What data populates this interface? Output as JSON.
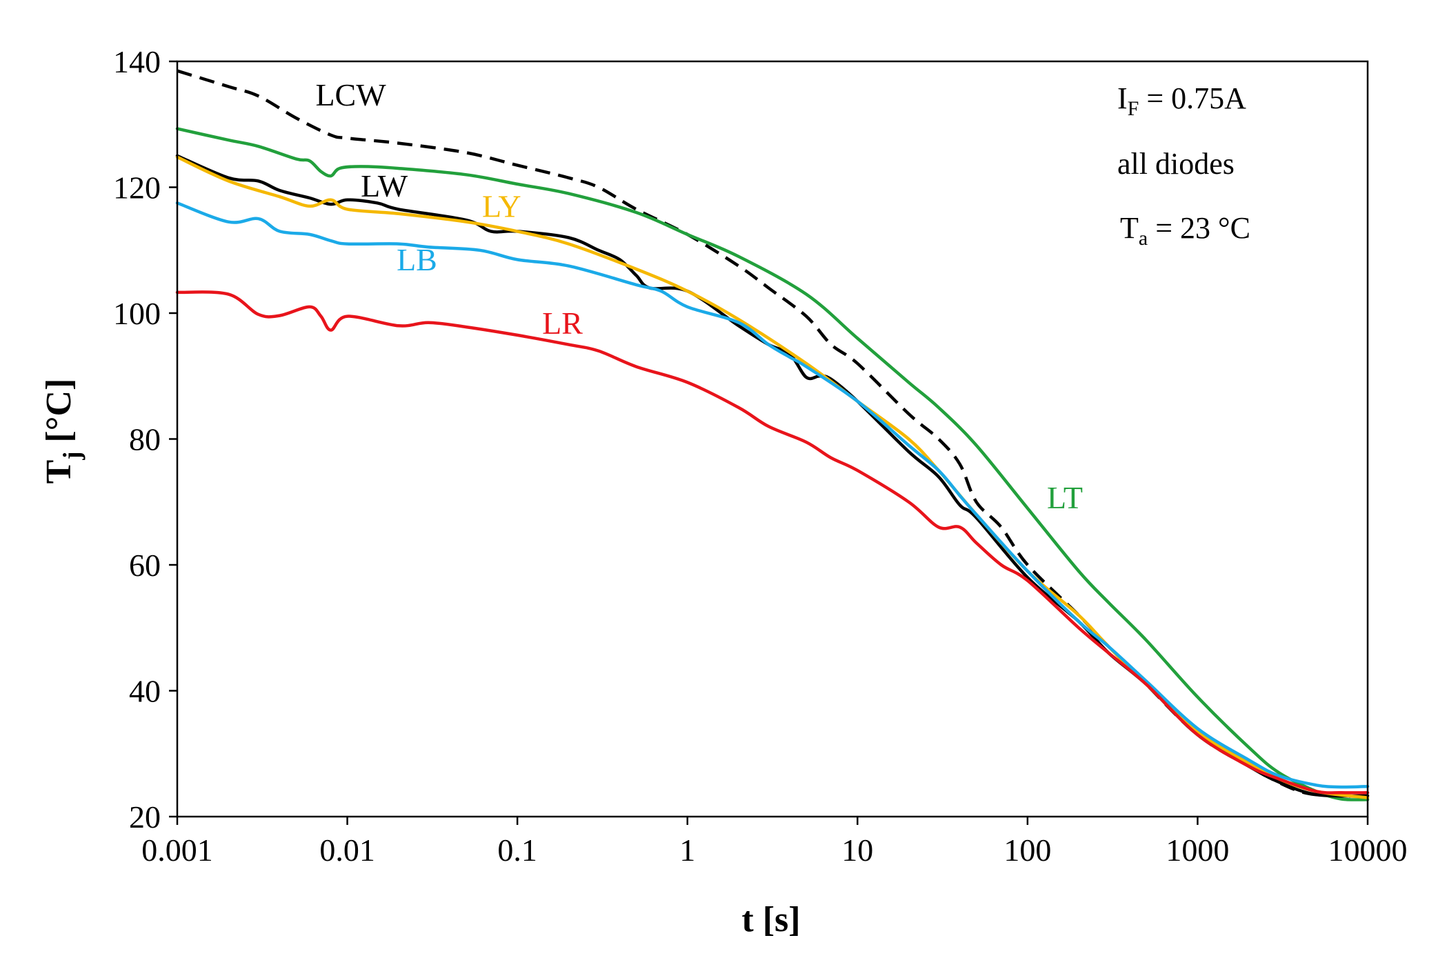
{
  "chart_data": {
    "type": "line",
    "xscale": "log",
    "xlabel": "t [s]",
    "ylabel_main": "T",
    "ylabel_sub": "j",
    "ylabel_rest": " [°C]",
    "xlim": [
      0.001,
      10000
    ],
    "ylim": [
      20,
      140
    ],
    "x_ticks": [
      0.001,
      0.01,
      0.1,
      1,
      10,
      100,
      1000,
      10000
    ],
    "x_tick_labels": [
      "0.001",
      "0.01",
      "0.1",
      "1",
      "10",
      "100",
      "1000",
      "10000"
    ],
    "y_ticks": [
      20,
      40,
      60,
      80,
      100,
      120,
      140
    ],
    "y_tick_labels": [
      "20",
      "40",
      "60",
      "80",
      "100",
      "120",
      "140"
    ],
    "annotations": {
      "current_main": "I",
      "current_sub": "F",
      "current_rest": " = 0.75A",
      "diodes": "all diodes",
      "ambient_main": "T",
      "ambient_sub": "a",
      "ambient_rest": " = 23 °C"
    },
    "series": [
      {
        "name": "LCW",
        "color": "#000000",
        "dashed": true,
        "label_at": [
          0.0065,
          133
        ],
        "label_anchor": "start",
        "points": [
          [
            0.001,
            138.5
          ],
          [
            0.002,
            136
          ],
          [
            0.003,
            134.5
          ],
          [
            0.005,
            131
          ],
          [
            0.008,
            128.3
          ],
          [
            0.01,
            127.8
          ],
          [
            0.02,
            127
          ],
          [
            0.05,
            125.5
          ],
          [
            0.1,
            123.5
          ],
          [
            0.2,
            121.5
          ],
          [
            0.3,
            120
          ],
          [
            0.5,
            116.5
          ],
          [
            1,
            112.5
          ],
          [
            2,
            107.5
          ],
          [
            3,
            104
          ],
          [
            5,
            99.5
          ],
          [
            7,
            95
          ],
          [
            10,
            92
          ],
          [
            20,
            84
          ],
          [
            30,
            80
          ],
          [
            40,
            76
          ],
          [
            50,
            70
          ],
          [
            70,
            66
          ],
          [
            100,
            60
          ],
          [
            200,
            52
          ],
          [
            300,
            47
          ],
          [
            500,
            41
          ],
          [
            1000,
            33
          ],
          [
            2000,
            28
          ],
          [
            4000,
            24
          ],
          [
            7000,
            23.3
          ],
          [
            10000,
            23.3
          ]
        ]
      },
      {
        "name": "LT",
        "color": "#22A03C",
        "dashed": false,
        "label_at": [
          130,
          69
        ],
        "label_anchor": "start",
        "points": [
          [
            0.001,
            129.3
          ],
          [
            0.002,
            127.5
          ],
          [
            0.003,
            126.5
          ],
          [
            0.005,
            124.5
          ],
          [
            0.006,
            124.2
          ],
          [
            0.007,
            122.5
          ],
          [
            0.008,
            121.8
          ],
          [
            0.009,
            123
          ],
          [
            0.012,
            123.3
          ],
          [
            0.02,
            123
          ],
          [
            0.05,
            122
          ],
          [
            0.1,
            120.5
          ],
          [
            0.2,
            119
          ],
          [
            0.5,
            116
          ],
          [
            1,
            112.5
          ],
          [
            2,
            109
          ],
          [
            5,
            103
          ],
          [
            10,
            96
          ],
          [
            20,
            89
          ],
          [
            30,
            85
          ],
          [
            50,
            79
          ],
          [
            100,
            69
          ],
          [
            200,
            59
          ],
          [
            300,
            54
          ],
          [
            500,
            48
          ],
          [
            1000,
            39
          ],
          [
            2000,
            31
          ],
          [
            3000,
            27
          ],
          [
            5000,
            24
          ],
          [
            7000,
            22.8
          ],
          [
            10000,
            22.7
          ]
        ]
      },
      {
        "name": "LW",
        "color": "#000000",
        "dashed": false,
        "label_at": [
          0.012,
          118.5
        ],
        "label_anchor": "start",
        "points": [
          [
            0.001,
            125
          ],
          [
            0.002,
            121.5
          ],
          [
            0.003,
            121
          ],
          [
            0.004,
            119.5
          ],
          [
            0.006,
            118.3
          ],
          [
            0.008,
            117.3
          ],
          [
            0.01,
            118
          ],
          [
            0.015,
            117.5
          ],
          [
            0.02,
            116.5
          ],
          [
            0.05,
            114.8
          ],
          [
            0.07,
            113
          ],
          [
            0.1,
            113
          ],
          [
            0.2,
            112
          ],
          [
            0.3,
            110
          ],
          [
            0.4,
            108.5
          ],
          [
            0.5,
            106
          ],
          [
            0.6,
            104
          ],
          [
            1,
            103.5
          ],
          [
            2,
            98
          ],
          [
            3,
            95
          ],
          [
            4,
            93.5
          ],
          [
            5,
            89.8
          ],
          [
            6,
            90
          ],
          [
            7,
            89.5
          ],
          [
            10,
            86
          ],
          [
            20,
            78
          ],
          [
            30,
            74
          ],
          [
            40,
            69.5
          ],
          [
            50,
            67.5
          ],
          [
            100,
            58
          ],
          [
            200,
            51
          ],
          [
            300,
            46
          ],
          [
            500,
            41
          ],
          [
            1000,
            33
          ],
          [
            2000,
            28
          ],
          [
            3000,
            25.5
          ],
          [
            5000,
            23.5
          ],
          [
            10000,
            23.3
          ]
        ]
      },
      {
        "name": "LY",
        "color": "#F5B800",
        "dashed": false,
        "label_at": [
          0.062,
          115.3
        ],
        "label_anchor": "start",
        "points": [
          [
            0.001,
            124.8
          ],
          [
            0.002,
            121
          ],
          [
            0.004,
            118.5
          ],
          [
            0.006,
            117
          ],
          [
            0.008,
            118
          ],
          [
            0.01,
            116.5
          ],
          [
            0.02,
            115.8
          ],
          [
            0.05,
            114.5
          ],
          [
            0.1,
            113
          ],
          [
            0.2,
            111
          ],
          [
            0.5,
            107
          ],
          [
            1,
            103.5
          ],
          [
            2,
            99
          ],
          [
            5,
            92
          ],
          [
            10,
            86
          ],
          [
            20,
            80
          ],
          [
            30,
            75
          ],
          [
            50,
            68
          ],
          [
            100,
            59
          ],
          [
            200,
            52
          ],
          [
            300,
            47
          ],
          [
            500,
            41
          ],
          [
            1000,
            33.5
          ],
          [
            2000,
            28.5
          ],
          [
            3000,
            26
          ],
          [
            5000,
            24
          ],
          [
            10000,
            23
          ]
        ]
      },
      {
        "name": "LB",
        "color": "#1BAAE8",
        "dashed": false,
        "label_at": [
          0.0195,
          106.8
        ],
        "label_anchor": "start",
        "points": [
          [
            0.001,
            117.5
          ],
          [
            0.002,
            114.5
          ],
          [
            0.003,
            115
          ],
          [
            0.004,
            113
          ],
          [
            0.006,
            112.5
          ],
          [
            0.008,
            111.5
          ],
          [
            0.01,
            111
          ],
          [
            0.02,
            111
          ],
          [
            0.03,
            110.5
          ],
          [
            0.06,
            110
          ],
          [
            0.1,
            108.5
          ],
          [
            0.2,
            107.5
          ],
          [
            0.5,
            104.5
          ],
          [
            0.7,
            103.5
          ],
          [
            1,
            101
          ],
          [
            2,
            98.5
          ],
          [
            3,
            95
          ],
          [
            4,
            93
          ],
          [
            5,
            91.5
          ],
          [
            10,
            86
          ],
          [
            20,
            79
          ],
          [
            30,
            75
          ],
          [
            40,
            71
          ],
          [
            50,
            68
          ],
          [
            100,
            59
          ],
          [
            200,
            51
          ],
          [
            300,
            47
          ],
          [
            500,
            41.5
          ],
          [
            1000,
            34
          ],
          [
            2000,
            29
          ],
          [
            3000,
            26.5
          ],
          [
            5000,
            25
          ],
          [
            7000,
            24.7
          ],
          [
            10000,
            24.8
          ]
        ]
      },
      {
        "name": "LR",
        "color": "#E8141B",
        "dashed": false,
        "label_at": [
          0.14,
          96.7
        ],
        "label_anchor": "start",
        "points": [
          [
            0.001,
            103.3
          ],
          [
            0.002,
            103
          ],
          [
            0.003,
            99.8
          ],
          [
            0.004,
            99.6
          ],
          [
            0.006,
            101
          ],
          [
            0.007,
            99.5
          ],
          [
            0.008,
            97.3
          ],
          [
            0.01,
            99.5
          ],
          [
            0.02,
            98
          ],
          [
            0.03,
            98.5
          ],
          [
            0.05,
            97.8
          ],
          [
            0.1,
            96.5
          ],
          [
            0.2,
            95
          ],
          [
            0.3,
            94
          ],
          [
            0.5,
            91.5
          ],
          [
            1,
            89
          ],
          [
            2,
            85
          ],
          [
            3,
            82
          ],
          [
            5,
            79.5
          ],
          [
            7,
            77
          ],
          [
            10,
            75
          ],
          [
            20,
            70
          ],
          [
            30,
            66
          ],
          [
            40,
            66
          ],
          [
            50,
            63.5
          ],
          [
            70,
            60
          ],
          [
            100,
            57.5
          ],
          [
            200,
            50
          ],
          [
            300,
            46
          ],
          [
            500,
            41
          ],
          [
            1000,
            33
          ],
          [
            2000,
            28
          ],
          [
            3000,
            26
          ],
          [
            5000,
            24
          ],
          [
            7000,
            23.8
          ],
          [
            10000,
            23.8
          ]
        ]
      }
    ]
  }
}
